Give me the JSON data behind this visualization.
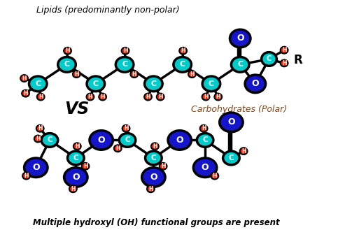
{
  "title_lipid": "Lipids (predominantly non-polar)",
  "title_carb": "Carbohydrates (Polar)",
  "vs_text": "VS",
  "bottom_text": "Multiple hydroxyl (OH) functional groups are present",
  "cyan_color": "#00CCCC",
  "blue_color": "#1515CC",
  "red_color": "#FF2200",
  "black_color": "#000000",
  "white_color": "#FFFFFF",
  "bg_color": "#FFFFFF",
  "brown_color": "#8B4513"
}
